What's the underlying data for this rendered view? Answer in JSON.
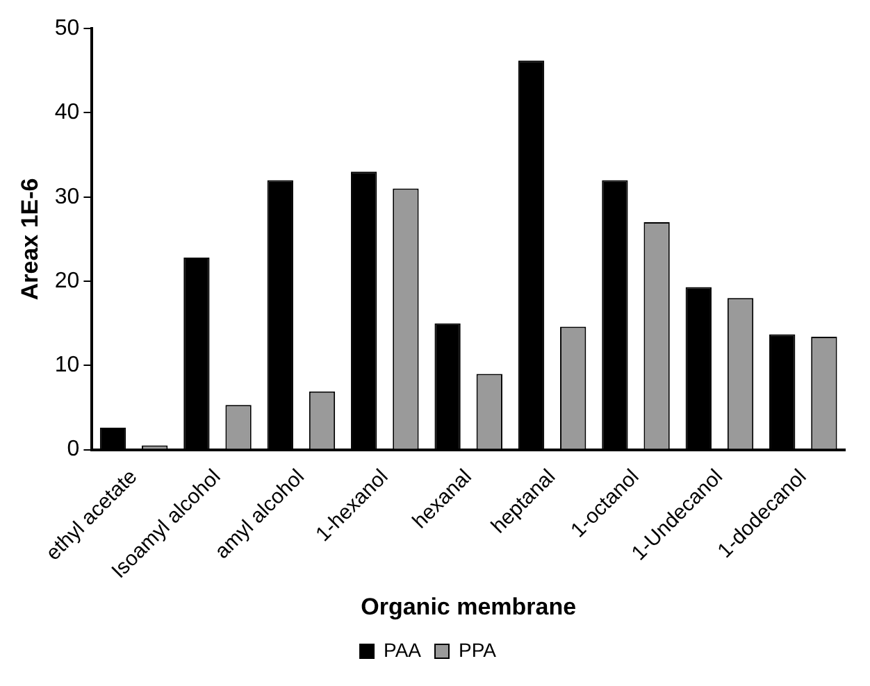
{
  "chart_data": {
    "type": "bar",
    "xlabel": "Organic membrane",
    "ylabel": "Areax 1E-6",
    "categories": [
      "ethyl acetate",
      "Isoamyl alcohol",
      "amyl alcohol",
      "1-hexanol",
      "hexanal",
      "heptanal",
      "1-octanol",
      "1-Undecanol",
      "1-dodecanol"
    ],
    "series": [
      {
        "name": "PAA",
        "color": "#000000",
        "values": [
          2.6,
          22.8,
          32,
          33,
          15,
          46.2,
          32,
          19.3,
          13.7
        ]
      },
      {
        "name": "PPA",
        "color": "#9a9a9a",
        "values": [
          0.5,
          5.3,
          6.9,
          31,
          9,
          14.6,
          27,
          18,
          13.4
        ]
      }
    ],
    "ylim": [
      0,
      50
    ],
    "yticks": [
      0,
      10,
      20,
      30,
      40,
      50
    ],
    "grid": false,
    "legend": "bottom"
  }
}
